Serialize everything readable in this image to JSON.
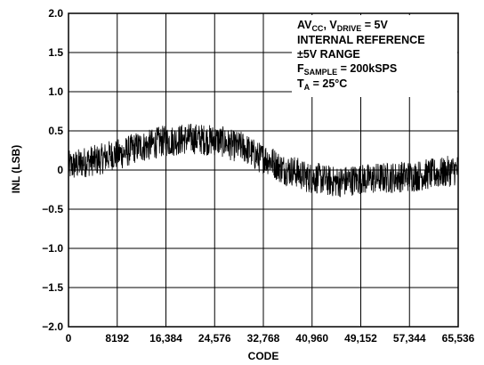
{
  "chart_data": {
    "type": "line",
    "title": "",
    "xlabel": "CODE",
    "ylabel": "INL (LSB)",
    "xlim": [
      0,
      65536
    ],
    "ylim": [
      -2.0,
      2.0
    ],
    "grid": true,
    "x_ticks": [
      0,
      8192,
      16384,
      24576,
      32768,
      40960,
      49152,
      57344,
      65536
    ],
    "x_tick_labels": [
      "0",
      "8192",
      "16,384",
      "24,576",
      "32,768",
      "40,960",
      "49,152",
      "57,344",
      "65,536"
    ],
    "y_ticks": [
      2.0,
      1.5,
      1.0,
      0.5,
      0,
      -0.5,
      -1.0,
      -1.5,
      -2.0
    ],
    "y_tick_labels": [
      "2.0",
      "1.5",
      "1.0",
      "0.5",
      "0",
      "−0.5",
      "−1.0",
      "−1.5",
      "−2.0"
    ],
    "series": [
      {
        "color": "#000000",
        "noise_band_lsb": 0.2,
        "x": [
          0,
          4096,
          8192,
          12288,
          16384,
          20480,
          24576,
          28672,
          32768,
          36864,
          40960,
          45056,
          49152,
          53248,
          57344,
          61440,
          65536
        ],
        "y": [
          0.05,
          0.12,
          0.2,
          0.3,
          0.37,
          0.4,
          0.38,
          0.3,
          0.15,
          0.0,
          -0.1,
          -0.15,
          -0.12,
          -0.1,
          -0.08,
          -0.05,
          0.0
        ]
      }
    ],
    "annotation": {
      "lines": [
        [
          {
            "t": "AV"
          },
          {
            "t": "CC",
            "sub": true
          },
          {
            "t": ", V"
          },
          {
            "t": "DRIVE",
            "sub": true
          },
          {
            "t": " = 5V"
          }
        ],
        [
          {
            "t": "INTERNAL REFERENCE"
          }
        ],
        [
          {
            "t": "±5V RANGE"
          }
        ],
        [
          {
            "t": "F"
          },
          {
            "t": "SAMPLE",
            "sub": true
          },
          {
            "t": " = 200kSPS"
          }
        ],
        [
          {
            "t": "T"
          },
          {
            "t": "A",
            "sub": true
          },
          {
            "t": " = 25°C"
          }
        ]
      ]
    }
  }
}
